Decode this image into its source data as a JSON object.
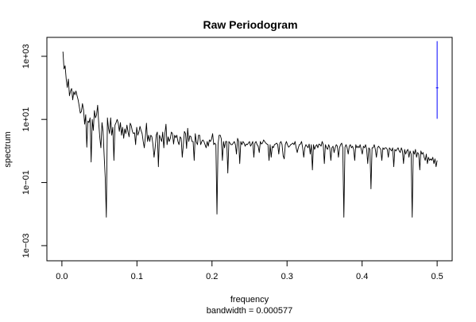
{
  "chart_data": {
    "type": "line",
    "title": "Raw Periodogram",
    "xlabel": "frequency",
    "sublabel": "bandwidth = 0.000577",
    "ylabel": "spectrum",
    "x_ticks": [
      0.0,
      0.1,
      0.2,
      0.3,
      0.4,
      0.5
    ],
    "x_tick_labels": [
      "0.0",
      "0.1",
      "0.2",
      "0.3",
      "0.4",
      "0.5"
    ],
    "y_ticks_log10": [
      -3,
      -1,
      1,
      3
    ],
    "y_tick_labels": [
      "1e−03",
      "1e−01",
      "1e+01",
      "1e+03"
    ],
    "y_scale": "log10",
    "xlim": [
      -0.02,
      0.52
    ],
    "ylim_log10": [
      -3.48,
      3.6
    ],
    "line_color": "#000000",
    "ci_bar_color": "#0000ff",
    "series": [
      {
        "log10_values": [
          3.15,
          2.6,
          2.7,
          2.28,
          2.01,
          2.28,
          1.75,
          1.9,
          1.98,
          1.62,
          1.88,
          1.78,
          1.9,
          1.75,
          1.62,
          1.42,
          1.2,
          1.25,
          1.5,
          1.3,
          0.85,
          1.15,
          0.12,
          0.95,
          0.9,
          1.05,
          -0.35,
          1.0,
          0.65,
          1.28,
          1.05,
          1.15,
          1.45,
          0.88,
          0.42,
          0.1,
          0.9,
          0.62,
          -0.15,
          -0.85,
          -2.1,
          1.05,
          0.72,
          0.55,
          1.05,
          0.5,
          0.75,
          -0.3,
          0.82,
          0.9,
          1.0,
          0.88,
          0.62,
          0.9,
          0.5,
          0.75,
          0.4,
          0.7,
          0.55,
          0.82,
          0.6,
          0.45,
          0.88,
          0.8,
          0.62,
          0.55,
          0.58,
          0.2,
          0.75,
          0.5,
          0.6,
          0.78,
          0.65,
          0.55,
          0.3,
          0.1,
          0.45,
          0.88,
          0.3,
          0.5,
          0.3,
          0.5,
          0.45,
          0.2,
          -0.2,
          0.1,
          0.5,
          0.6,
          -0.5,
          0.5,
          0.4,
          0.3,
          0.6,
          0.1,
          0.55,
          0.85,
          0.2,
          0.45,
          0.3,
          0.4,
          0.6,
          0.55,
          0.22,
          0.5,
          0.42,
          0.5,
          0.3,
          0.2,
          0.45,
          0.4,
          -0.2,
          0.2,
          0.62,
          0.55,
          0.08,
          0.72,
          0.3,
          0.48,
          0.45,
          0.3,
          0.3,
          -0.3,
          0.55,
          0.28,
          0.2,
          0.5,
          0.5,
          0.2,
          0.3,
          0.35,
          0.3,
          0.2,
          0.1,
          0.3,
          0.15,
          0.35,
          0.3,
          0.38,
          0.55,
          0.2,
          0.25,
          0.2,
          -2.0,
          0.22,
          0.5,
          0.5,
          0.38,
          -0.3,
          0.3,
          0.1,
          0.3,
          0.3,
          -0.7,
          0.3,
          0.25,
          0.2,
          0.2,
          0.25,
          0.3,
          0.2,
          -0.1,
          0.4,
          0.3,
          -0.4,
          0.3,
          0.2,
          0.3,
          0.25,
          0.15,
          0.22,
          0.2,
          0.25,
          0.3,
          0.15,
          0.22,
          0.3,
          -0.2,
          0.25,
          0.3,
          0.2,
          0.15,
          -0.05,
          0.3,
          0.22,
          0.25,
          0.35,
          0.3,
          0.25,
          0.22,
          0.2,
          -0.3,
          0.2,
          -0.2,
          0.15,
          0.1,
          0.2,
          0.22,
          0.25,
          0.2,
          -0.1,
          0.25,
          0.3,
          0.2,
          -0.15,
          -0.25,
          0.2,
          0.3,
          0.2,
          0.12,
          0.15,
          0.2,
          0.22,
          0.25,
          0.2,
          0.3,
          0.1,
          -0.05,
          0.1,
          0.2,
          0.22,
          0.3,
          0.1,
          -0.2,
          0.1,
          0.2,
          0.15,
          0.1,
          0.22,
          -0.1,
          0.2,
          -0.6,
          0.2,
          0.05,
          0.15,
          0.2,
          0.1,
          0.22,
          0.2,
          0.15,
          0.3,
          0.2,
          -0.4,
          0.2,
          0.1,
          0.05,
          0.2,
          0.1,
          -0.3,
          0.1,
          0.15,
          -0.05,
          0.1,
          0.2,
          0.15,
          -0.2,
          0.1,
          0.2,
          0.25,
          0.1,
          -2.1,
          0.12,
          0.2,
          0.1,
          -0.1,
          0.15,
          0.2,
          0.1,
          0.15,
          0.05,
          -0.3,
          0.2,
          0.1,
          0.15,
          0.1,
          0.2,
          0.05,
          -0.1,
          0.15,
          0.1,
          0.2,
          0.05,
          -0.4,
          0.1,
          0.05,
          -1.2,
          0.1,
          0.1,
          0.2,
          0.05,
          -0.2,
          0.1,
          0.15,
          0.1,
          0.05,
          -0.3,
          0.1,
          0.05,
          0.1,
          0.1,
          0.05,
          -0.2,
          0.1,
          0.05,
          0.0,
          0.1,
          -0.5,
          0.05,
          0.0,
          0.05,
          0.1,
          0.0,
          -0.05,
          0.1,
          0.0,
          -0.4,
          0.05,
          -0.1,
          0.0,
          0.05,
          -0.2,
          0.0,
          -0.1,
          -2.1,
          0.0,
          -0.1,
          0.05,
          -0.2,
          -0.05,
          -0.1,
          -0.6,
          0.0,
          -0.1,
          -0.05,
          -0.2,
          -0.3,
          -0.1,
          -0.4,
          -0.2,
          -0.3,
          -0.25,
          -0.3,
          -0.2,
          -0.4,
          -0.25,
          -0.5,
          -0.3
        ]
      }
    ],
    "ci_bar": {
      "x": 0.5,
      "y_low_log10": 1.02,
      "y_high_log10": 3.48,
      "y_center_log10": 2.0
    }
  }
}
